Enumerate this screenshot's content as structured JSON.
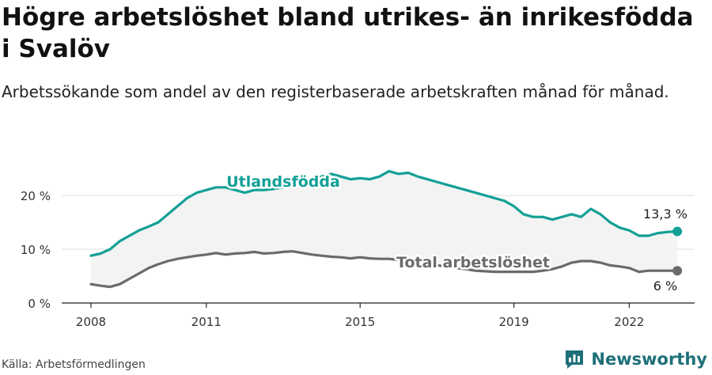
{
  "header": {
    "title": "Högre arbetslöshet bland utrikes- än inrikesfödda i Svalöv",
    "subtitle": "Arbetssökande som andel av den registerbaserade arbetskraften månad för månad."
  },
  "footer": {
    "source": "Källa: Arbetsförmedlingen",
    "brand": "Newsworthy"
  },
  "colors": {
    "foreign": "#12a096",
    "total": "#6b6b6b",
    "band": "#f3f3f3",
    "grid": "#dddddd",
    "brand": "#1e6f78"
  },
  "chart_data": {
    "type": "line",
    "title": "Högre arbetslöshet bland utrikes- än inrikesfödda i Svalöv",
    "xlabel": "",
    "ylabel": "",
    "xlim": [
      2008,
      2023.7
    ],
    "ylim": [
      0,
      20
    ],
    "x_ticks": [
      {
        "value": 2008,
        "label": "2008"
      },
      {
        "value": 2011,
        "label": "2011"
      },
      {
        "value": 2015,
        "label": "2015"
      },
      {
        "value": 2019,
        "label": "2019"
      },
      {
        "value": 2022,
        "label": "2022"
      }
    ],
    "y_ticks": [
      {
        "value": 0,
        "label": "0 %"
      },
      {
        "value": 10,
        "label": "10 %"
      },
      {
        "value": 20,
        "label": "20 %"
      }
    ],
    "series": [
      {
        "name": "Utlandsfödda",
        "color": "#12a096",
        "end_label": "13,3 %",
        "x": [
          2008.0,
          2008.25,
          2008.5,
          2008.75,
          2009.0,
          2009.25,
          2009.5,
          2009.75,
          2010.0,
          2010.25,
          2010.5,
          2010.75,
          2011.0,
          2011.25,
          2011.5,
          2011.75,
          2012.0,
          2012.25,
          2012.5,
          2012.75,
          2013.0,
          2013.25,
          2013.5,
          2013.75,
          2014.0,
          2014.25,
          2014.5,
          2014.75,
          2015.0,
          2015.25,
          2015.5,
          2015.75,
          2016.0,
          2016.25,
          2016.5,
          2016.75,
          2017.0,
          2017.25,
          2017.5,
          2017.75,
          2018.0,
          2018.25,
          2018.5,
          2018.75,
          2019.0,
          2019.25,
          2019.5,
          2019.75,
          2020.0,
          2020.25,
          2020.5,
          2020.75,
          2021.0,
          2021.25,
          2021.5,
          2021.75,
          2022.0,
          2022.25,
          2022.5,
          2022.75,
          2023.0,
          2023.25
        ],
        "values": [
          8.8,
          9.2,
          10.0,
          11.5,
          12.5,
          13.5,
          14.2,
          15.0,
          16.5,
          18.0,
          19.5,
          20.5,
          21.0,
          21.5,
          21.5,
          21.0,
          20.5,
          21.0,
          21.0,
          21.2,
          21.5,
          22.0,
          22.5,
          22.8,
          23.5,
          24.0,
          23.5,
          23.0,
          23.2,
          23.0,
          23.5,
          24.5,
          24.0,
          24.2,
          23.5,
          23.0,
          22.5,
          22.0,
          21.5,
          21.0,
          20.5,
          20.0,
          19.5,
          19.0,
          18.0,
          16.5,
          16.0,
          16.0,
          15.5,
          16.0,
          16.5,
          16.0,
          17.5,
          16.5,
          15.0,
          14.0,
          13.5,
          12.5,
          12.5,
          13.0,
          13.2,
          13.3
        ]
      },
      {
        "name": "Total arbetslöshet",
        "color": "#6b6b6b",
        "end_label": "6 %",
        "x": [
          2008.0,
          2008.25,
          2008.5,
          2008.75,
          2009.0,
          2009.25,
          2009.5,
          2009.75,
          2010.0,
          2010.25,
          2010.5,
          2010.75,
          2011.0,
          2011.25,
          2011.5,
          2011.75,
          2012.0,
          2012.25,
          2012.5,
          2012.75,
          2013.0,
          2013.25,
          2013.5,
          2013.75,
          2014.0,
          2014.25,
          2014.5,
          2014.75,
          2015.0,
          2015.25,
          2015.5,
          2015.75,
          2016.0,
          2016.25,
          2016.5,
          2016.75,
          2017.0,
          2017.25,
          2017.5,
          2017.75,
          2018.0,
          2018.25,
          2018.5,
          2018.75,
          2019.0,
          2019.25,
          2019.5,
          2019.75,
          2020.0,
          2020.25,
          2020.5,
          2020.75,
          2021.0,
          2021.25,
          2021.5,
          2021.75,
          2022.0,
          2022.25,
          2022.5,
          2022.75,
          2023.0,
          2023.25
        ],
        "values": [
          3.5,
          3.2,
          3.0,
          3.5,
          4.5,
          5.5,
          6.5,
          7.2,
          7.8,
          8.2,
          8.5,
          8.8,
          9.0,
          9.3,
          9.0,
          9.2,
          9.3,
          9.5,
          9.2,
          9.3,
          9.5,
          9.6,
          9.3,
          9.0,
          8.8,
          8.6,
          8.5,
          8.3,
          8.5,
          8.3,
          8.2,
          8.2,
          8.0,
          7.8,
          7.5,
          7.3,
          7.0,
          6.8,
          6.5,
          6.3,
          6.0,
          5.9,
          5.8,
          5.8,
          5.8,
          5.8,
          5.8,
          6.0,
          6.3,
          6.8,
          7.5,
          7.8,
          7.8,
          7.5,
          7.0,
          6.8,
          6.5,
          5.8,
          6.0,
          6.0,
          6.0,
          6.0
        ]
      }
    ]
  }
}
